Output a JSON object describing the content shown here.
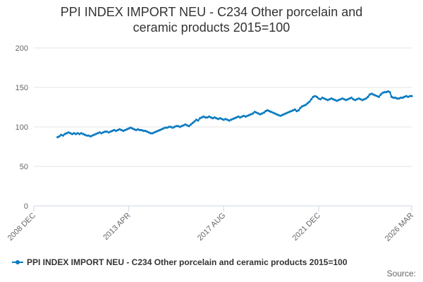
{
  "chart_data": {
    "type": "line",
    "title_lines": [
      "PPI INDEX IMPORT NEU - C234 Other porcelain and",
      "ceramic products 2015=100"
    ],
    "xlabel": "",
    "ylabel": "",
    "ylim": [
      0,
      200
    ],
    "y_ticks": [
      "0",
      "50",
      "100",
      "150",
      "200"
    ],
    "x_ticks": [
      "2008 DEC",
      "2013 APR",
      "2017 AUG",
      "2021 DEC",
      "2026 MAR"
    ],
    "x_tick_dates": [
      "2008-12",
      "2013-04",
      "2017-08",
      "2021-12",
      "2026-03"
    ],
    "grid": true,
    "legend_position": "bottom-left",
    "series": [
      {
        "name": "PPI INDEX IMPORT NEU - C234 Other porcelain and ceramic products 2015=100",
        "color": "#0a7bc0",
        "points": [
          [
            "2010-01",
            87
          ],
          [
            "2010-02",
            88
          ],
          [
            "2010-03",
            90
          ],
          [
            "2010-04",
            89
          ],
          [
            "2010-05",
            91
          ],
          [
            "2010-06",
            92
          ],
          [
            "2010-07",
            93
          ],
          [
            "2010-08",
            92
          ],
          [
            "2010-09",
            91
          ],
          [
            "2010-10",
            92
          ],
          [
            "2010-11",
            91
          ],
          [
            "2010-12",
            92
          ],
          [
            "2011-01",
            91
          ],
          [
            "2011-02",
            92
          ],
          [
            "2011-03",
            91
          ],
          [
            "2011-04",
            90
          ],
          [
            "2011-05",
            89
          ],
          [
            "2011-06",
            89
          ],
          [
            "2011-07",
            88
          ],
          [
            "2011-08",
            89
          ],
          [
            "2011-09",
            90
          ],
          [
            "2011-10",
            91
          ],
          [
            "2011-11",
            92
          ],
          [
            "2011-12",
            93
          ],
          [
            "2012-01",
            92
          ],
          [
            "2012-02",
            93
          ],
          [
            "2012-03",
            94
          ],
          [
            "2012-04",
            94
          ],
          [
            "2012-05",
            93
          ],
          [
            "2012-06",
            94
          ],
          [
            "2012-07",
            95
          ],
          [
            "2012-08",
            96
          ],
          [
            "2012-09",
            95
          ],
          [
            "2012-10",
            96
          ],
          [
            "2012-11",
            97
          ],
          [
            "2012-12",
            96
          ],
          [
            "2013-01",
            95
          ],
          [
            "2013-02",
            96
          ],
          [
            "2013-03",
            97
          ],
          [
            "2013-04",
            98
          ],
          [
            "2013-05",
            99
          ],
          [
            "2013-06",
            98
          ],
          [
            "2013-07",
            97
          ],
          [
            "2013-08",
            96
          ],
          [
            "2013-09",
            97
          ],
          [
            "2013-10",
            96
          ],
          [
            "2013-11",
            96
          ],
          [
            "2013-12",
            95
          ],
          [
            "2014-01",
            95
          ],
          [
            "2014-02",
            94
          ],
          [
            "2014-03",
            93
          ],
          [
            "2014-04",
            92
          ],
          [
            "2014-05",
            92
          ],
          [
            "2014-06",
            93
          ],
          [
            "2014-07",
            94
          ],
          [
            "2014-08",
            95
          ],
          [
            "2014-09",
            96
          ],
          [
            "2014-10",
            97
          ],
          [
            "2014-11",
            98
          ],
          [
            "2014-12",
            99
          ],
          [
            "2015-01",
            99
          ],
          [
            "2015-02",
            100
          ],
          [
            "2015-03",
            100
          ],
          [
            "2015-04",
            99
          ],
          [
            "2015-05",
            100
          ],
          [
            "2015-06",
            101
          ],
          [
            "2015-07",
            101
          ],
          [
            "2015-08",
            100
          ],
          [
            "2015-09",
            101
          ],
          [
            "2015-10",
            102
          ],
          [
            "2015-11",
            103
          ],
          [
            "2015-12",
            102
          ],
          [
            "2016-01",
            101
          ],
          [
            "2016-02",
            103
          ],
          [
            "2016-03",
            105
          ],
          [
            "2016-04",
            107
          ],
          [
            "2016-05",
            109
          ],
          [
            "2016-06",
            108
          ],
          [
            "2016-07",
            111
          ],
          [
            "2016-08",
            112
          ],
          [
            "2016-09",
            113
          ],
          [
            "2016-10",
            112
          ],
          [
            "2016-11",
            112
          ],
          [
            "2016-12",
            113
          ],
          [
            "2017-01",
            112
          ],
          [
            "2017-02",
            111
          ],
          [
            "2017-03",
            112
          ],
          [
            "2017-04",
            111
          ],
          [
            "2017-05",
            110
          ],
          [
            "2017-06",
            111
          ],
          [
            "2017-07",
            110
          ],
          [
            "2017-08",
            109
          ],
          [
            "2017-09",
            110
          ],
          [
            "2017-10",
            109
          ],
          [
            "2017-11",
            108
          ],
          [
            "2017-12",
            109
          ],
          [
            "2018-01",
            110
          ],
          [
            "2018-02",
            111
          ],
          [
            "2018-03",
            112
          ],
          [
            "2018-04",
            113
          ],
          [
            "2018-05",
            112
          ],
          [
            "2018-06",
            113
          ],
          [
            "2018-07",
            114
          ],
          [
            "2018-08",
            113
          ],
          [
            "2018-09",
            114
          ],
          [
            "2018-10",
            115
          ],
          [
            "2018-11",
            116
          ],
          [
            "2018-12",
            117
          ],
          [
            "2019-01",
            119
          ],
          [
            "2019-02",
            118
          ],
          [
            "2019-03",
            117
          ],
          [
            "2019-04",
            116
          ],
          [
            "2019-05",
            117
          ],
          [
            "2019-06",
            118
          ],
          [
            "2019-07",
            120
          ],
          [
            "2019-08",
            121
          ],
          [
            "2019-09",
            120
          ],
          [
            "2019-10",
            119
          ],
          [
            "2019-11",
            118
          ],
          [
            "2019-12",
            117
          ],
          [
            "2020-01",
            116
          ],
          [
            "2020-02",
            115
          ],
          [
            "2020-03",
            114
          ],
          [
            "2020-04",
            115
          ],
          [
            "2020-05",
            116
          ],
          [
            "2020-06",
            117
          ],
          [
            "2020-07",
            118
          ],
          [
            "2020-08",
            119
          ],
          [
            "2020-09",
            120
          ],
          [
            "2020-10",
            121
          ],
          [
            "2020-11",
            122
          ],
          [
            "2020-12",
            120
          ],
          [
            "2021-01",
            121
          ],
          [
            "2021-02",
            124
          ],
          [
            "2021-03",
            126
          ],
          [
            "2021-04",
            127
          ],
          [
            "2021-05",
            128
          ],
          [
            "2021-06",
            130
          ],
          [
            "2021-07",
            132
          ],
          [
            "2021-08",
            135
          ],
          [
            "2021-09",
            138
          ],
          [
            "2021-10",
            139
          ],
          [
            "2021-11",
            138
          ],
          [
            "2021-12",
            136
          ],
          [
            "2022-01",
            135
          ],
          [
            "2022-02",
            137
          ],
          [
            "2022-03",
            136
          ],
          [
            "2022-04",
            135
          ],
          [
            "2022-05",
            134
          ],
          [
            "2022-06",
            135
          ],
          [
            "2022-07",
            136
          ],
          [
            "2022-08",
            135
          ],
          [
            "2022-09",
            134
          ],
          [
            "2022-10",
            133
          ],
          [
            "2022-11",
            134
          ],
          [
            "2022-12",
            135
          ],
          [
            "2023-01",
            136
          ],
          [
            "2023-02",
            135
          ],
          [
            "2023-03",
            134
          ],
          [
            "2023-04",
            135
          ],
          [
            "2023-05",
            136
          ],
          [
            "2023-06",
            137
          ],
          [
            "2023-07",
            135
          ],
          [
            "2023-08",
            134
          ],
          [
            "2023-09",
            135
          ],
          [
            "2023-10",
            136
          ],
          [
            "2023-11",
            135
          ],
          [
            "2023-12",
            134
          ],
          [
            "2024-01",
            135
          ],
          [
            "2024-02",
            136
          ],
          [
            "2024-03",
            138
          ],
          [
            "2024-04",
            141
          ],
          [
            "2024-05",
            142
          ],
          [
            "2024-06",
            141
          ],
          [
            "2024-07",
            140
          ],
          [
            "2024-08",
            139
          ],
          [
            "2024-09",
            138
          ],
          [
            "2024-10",
            141
          ],
          [
            "2024-11",
            143
          ],
          [
            "2024-12",
            144
          ],
          [
            "2025-01",
            144
          ],
          [
            "2025-02",
            145
          ],
          [
            "2025-03",
            144
          ],
          [
            "2025-04",
            138
          ],
          [
            "2025-05",
            137
          ],
          [
            "2025-06",
            137
          ],
          [
            "2025-07",
            136
          ],
          [
            "2025-08",
            136
          ],
          [
            "2025-09",
            137
          ],
          [
            "2025-10",
            137
          ],
          [
            "2025-11",
            138
          ],
          [
            "2025-12",
            139
          ],
          [
            "2026-01",
            138
          ],
          [
            "2026-02",
            139
          ],
          [
            "2026-03",
            139
          ]
        ]
      }
    ]
  },
  "credits": "Source:"
}
